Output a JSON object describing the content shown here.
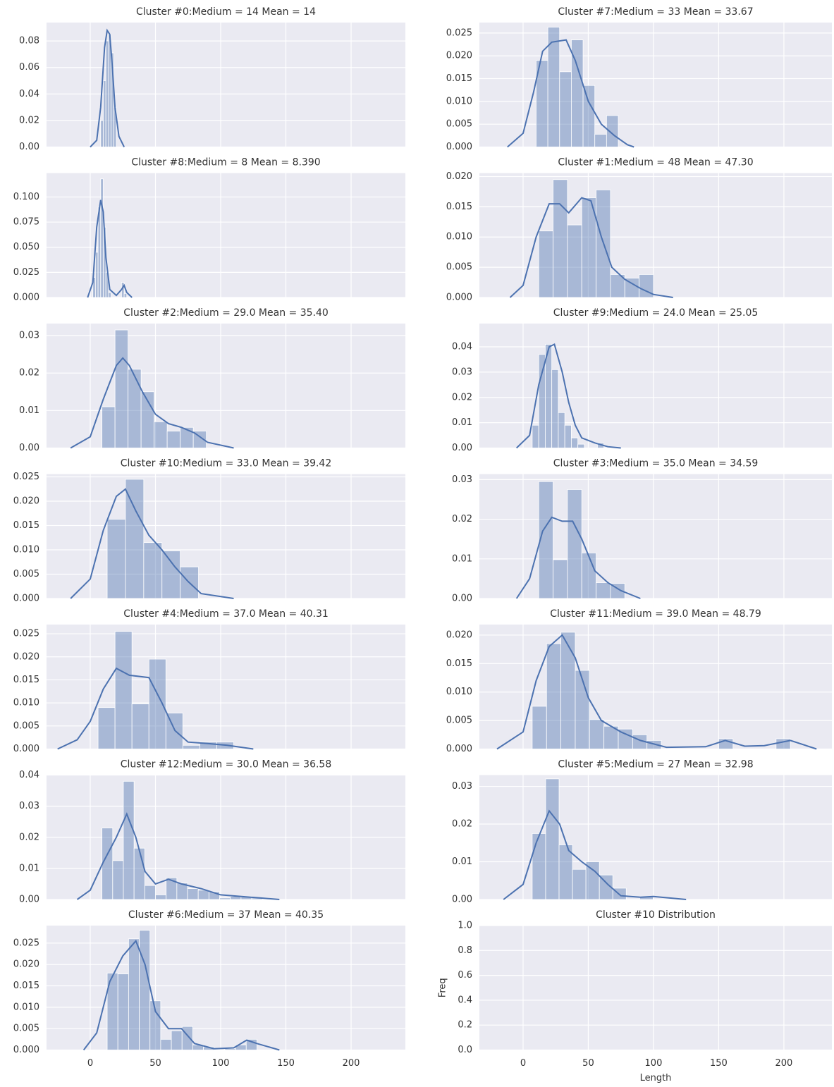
{
  "chart_data": [
    {
      "type": "histogram",
      "title": "Cluster #0:Medium = 14 Mean = 14",
      "color": "#4c72b0",
      "bins": [
        8,
        10,
        12,
        14,
        16,
        18,
        20
      ],
      "values": [
        0.02,
        0.05,
        0.08,
        0.085,
        0.071,
        0.03
      ],
      "kde": {
        "x": [
          0,
          5,
          8,
          11,
          13,
          15,
          17,
          19,
          22,
          26
        ],
        "values": [
          0,
          0.005,
          0.03,
          0.075,
          0.088,
          0.085,
          0.06,
          0.03,
          0.008,
          0
        ]
      },
      "xlim": [
        -33.5,
        241.6
      ],
      "xticks": [
        0,
        50,
        100,
        150,
        200
      ],
      "ylim": [
        0,
        0.0939
      ],
      "yticks": [
        {
          "value": 0,
          "label": "0.00"
        },
        0.02,
        0.04,
        0.06,
        0.08
      ],
      "grid": true
    },
    {
      "type": "histogram",
      "title": "Cluster #7:Medium = 33 Mean = 33.67",
      "color": "#4c72b0",
      "bins": [
        10,
        19,
        28,
        37,
        46,
        55,
        64,
        73
      ],
      "values": [
        0.019,
        0.0263,
        0.0165,
        0.0235,
        0.0135,
        0.0028,
        0.0069
      ],
      "kde": {
        "x": [
          -12,
          0,
          8,
          15,
          22,
          33,
          40,
          50,
          60,
          70,
          80,
          85
        ],
        "values": [
          0,
          0.003,
          0.012,
          0.021,
          0.023,
          0.0235,
          0.019,
          0.01,
          0.005,
          0.0025,
          0.0005,
          0
        ]
      },
      "xlim": [
        -33.5,
        236.8
      ],
      "xticks": [
        0,
        50,
        100,
        150,
        200
      ],
      "ylim": [
        0,
        0.0273
      ],
      "yticks": [
        {
          "value": 0,
          "label": "0.000"
        },
        0.005,
        {
          "value": 0.01,
          "label": "0.010"
        },
        0.015,
        {
          "value": 0.02,
          "label": "0.020"
        },
        0.025
      ],
      "grid": true
    },
    {
      "type": "histogram",
      "title": "Cluster #8:Medium = 8 Mean = 8.390",
      "color": "#4c72b0",
      "bins": [
        2,
        4,
        6,
        8,
        10,
        12,
        14,
        16,
        18,
        20,
        22,
        24,
        26,
        28
      ],
      "values": [
        0.02,
        0.045,
        0.09,
        0.118,
        0.07,
        0.025,
        0.005,
        0,
        0,
        0,
        0,
        0.015,
        0.004
      ],
      "kde": {
        "x": [
          -2,
          2,
          5,
          8,
          10,
          12,
          15,
          20,
          24,
          26,
          28,
          32
        ],
        "values": [
          0,
          0.015,
          0.07,
          0.097,
          0.085,
          0.04,
          0.008,
          0.002,
          0.008,
          0.012,
          0.005,
          0
        ]
      },
      "xlim": [
        -33.5,
        241.6
      ],
      "xticks": [
        0,
        50,
        100,
        150,
        200
      ],
      "ylim": [
        0,
        0.1238
      ],
      "yticks": [
        {
          "value": 0,
          "label": "0.000"
        },
        0.025,
        {
          "value": 0.05,
          "label": "0.050"
        },
        0.075,
        {
          "value": 0.1,
          "label": "0.100"
        }
      ],
      "grid": true
    },
    {
      "type": "histogram",
      "title": "Cluster #1:Medium = 48 Mean = 47.30",
      "color": "#4c72b0",
      "bins": [
        12,
        23,
        34,
        45,
        56,
        67,
        78,
        89,
        100
      ],
      "values": [
        0.011,
        0.0195,
        0.012,
        0.0165,
        0.0178,
        0.0038,
        0.0032,
        0.0038
      ],
      "kde": {
        "x": [
          -10,
          0,
          10,
          20,
          28,
          35,
          45,
          52,
          60,
          68,
          78,
          90,
          100,
          115
        ],
        "values": [
          0,
          0.002,
          0.01,
          0.0155,
          0.0155,
          0.014,
          0.0165,
          0.016,
          0.01,
          0.005,
          0.003,
          0.0015,
          0.0005,
          0
        ]
      },
      "xlim": [
        -33.5,
        236.8
      ],
      "xticks": [
        0,
        50,
        100,
        150,
        200
      ],
      "ylim": [
        0,
        0.02058
      ],
      "yticks": [
        {
          "value": 0,
          "label": "0.000"
        },
        0.005,
        {
          "value": 0.01,
          "label": "0.010"
        },
        0.015,
        {
          "value": 0.02,
          "label": "0.020"
        }
      ],
      "grid": true
    },
    {
      "type": "histogram",
      "title": "Cluster #2:Medium = 29.0 Mean = 35.40",
      "color": "#4c72b0",
      "bins": [
        9,
        19,
        29,
        39,
        49,
        59,
        69,
        79,
        89
      ],
      "values": [
        0.011,
        0.0315,
        0.021,
        0.015,
        0.007,
        0.0045,
        0.0055,
        0.0045
      ],
      "kde": {
        "x": [
          -15,
          0,
          10,
          20,
          25,
          30,
          40,
          50,
          60,
          70,
          80,
          90,
          110
        ],
        "values": [
          0,
          0.003,
          0.013,
          0.022,
          0.024,
          0.022,
          0.015,
          0.009,
          0.0065,
          0.0055,
          0.004,
          0.0015,
          0
        ]
      },
      "xlim": [
        -33.5,
        241.6
      ],
      "xticks": [
        0,
        50,
        100,
        150,
        200
      ],
      "ylim": [
        0,
        0.0332
      ],
      "yticks": [
        {
          "value": 0,
          "label": "0.00"
        },
        0.01,
        0.02,
        0.03
      ],
      "grid": true
    },
    {
      "type": "histogram",
      "title": "Cluster #9:Medium = 24.0 Mean = 25.05",
      "color": "#4c72b0",
      "bins": [
        7,
        12,
        17,
        22,
        27,
        32,
        37,
        42,
        47,
        52,
        57,
        62
      ],
      "values": [
        0.009,
        0.037,
        0.041,
        0.031,
        0.014,
        0.009,
        0.004,
        0.0015,
        0,
        0,
        0.002
      ],
      "kde": {
        "x": [
          -5,
          5,
          12,
          20,
          24,
          30,
          35,
          40,
          45,
          55,
          65,
          75
        ],
        "values": [
          0,
          0.005,
          0.025,
          0.04,
          0.041,
          0.03,
          0.018,
          0.009,
          0.004,
          0.002,
          0.0005,
          0
        ]
      },
      "xlim": [
        -33.5,
        236.8
      ],
      "xticks": [
        0,
        50,
        100,
        150,
        200
      ],
      "ylim": [
        0,
        0.0492
      ],
      "yticks": [
        {
          "value": 0,
          "label": "0.00"
        },
        0.01,
        0.02,
        0.03,
        0.04
      ],
      "grid": true
    },
    {
      "type": "histogram",
      "title": "Cluster #10:Medium = 33.0 Mean = 39.42",
      "color": "#4c72b0",
      "bins": [
        13,
        27,
        41,
        55,
        69,
        83
      ],
      "values": [
        0.0163,
        0.0245,
        0.0115,
        0.0098,
        0.0065
      ],
      "kde": {
        "x": [
          -15,
          0,
          10,
          20,
          27,
          35,
          45,
          55,
          65,
          75,
          85,
          110
        ],
        "values": [
          0,
          0.004,
          0.014,
          0.021,
          0.0225,
          0.018,
          0.013,
          0.01,
          0.0065,
          0.0035,
          0.001,
          0
        ]
      },
      "xlim": [
        -33.5,
        241.6
      ],
      "xticks": [
        0,
        50,
        100,
        150,
        200
      ],
      "ylim": [
        0,
        0.02558
      ],
      "yticks": [
        {
          "value": 0,
          "label": "0.000"
        },
        0.005,
        {
          "value": 0.01,
          "label": "0.010"
        },
        0.015,
        {
          "value": 0.02,
          "label": "0.020"
        },
        0.025
      ],
      "grid": true
    },
    {
      "type": "histogram",
      "title": "Cluster #3:Medium = 35.0 Mean = 34.59",
      "color": "#4c72b0",
      "bins": [
        12,
        23,
        34,
        45,
        56,
        67,
        78
      ],
      "values": [
        0.0295,
        0.0098,
        0.0275,
        0.0115,
        0.004,
        0.0038
      ],
      "kde": {
        "x": [
          -5,
          5,
          15,
          22,
          30,
          38,
          45,
          55,
          65,
          75,
          90
        ],
        "values": [
          0,
          0.005,
          0.017,
          0.0205,
          0.0195,
          0.0195,
          0.015,
          0.007,
          0.004,
          0.002,
          0
        ]
      },
      "xlim": [
        -33.5,
        236.8
      ],
      "xticks": [
        0,
        50,
        100,
        150,
        200
      ],
      "ylim": [
        0,
        0.0314
      ],
      "yticks": [
        {
          "value": 0,
          "label": "0.00"
        },
        0.01,
        0.02,
        0.03
      ],
      "grid": true
    },
    {
      "type": "histogram",
      "title": "Cluster #4:Medium = 37.0 Mean = 40.31",
      "color": "#4c72b0",
      "bins": [
        6,
        19,
        32,
        45,
        58,
        71,
        84,
        97,
        110
      ],
      "values": [
        0.009,
        0.0255,
        0.0098,
        0.0195,
        0.0078,
        0.0008,
        0.0015,
        0.0015
      ],
      "kde": {
        "x": [
          -25,
          -10,
          0,
          10,
          20,
          30,
          45,
          55,
          65,
          75,
          90,
          105,
          125
        ],
        "values": [
          0,
          0.002,
          0.006,
          0.013,
          0.0175,
          0.016,
          0.0155,
          0.01,
          0.004,
          0.0015,
          0.0012,
          0.0008,
          0
        ]
      },
      "xlim": [
        -33.5,
        241.6
      ],
      "xticks": [
        0,
        50,
        100,
        150,
        200
      ],
      "ylim": [
        0,
        0.027
      ],
      "yticks": [
        {
          "value": 0,
          "label": "0.000"
        },
        0.005,
        {
          "value": 0.01,
          "label": "0.010"
        },
        0.015,
        {
          "value": 0.02,
          "label": "0.020"
        },
        0.025
      ],
      "grid": true
    },
    {
      "type": "histogram",
      "title": "Cluster #11:Medium = 39.0 Mean = 48.79",
      "color": "#4c72b0",
      "bins": [
        7,
        18,
        29,
        40,
        51,
        62,
        73,
        84,
        95,
        106,
        117,
        128,
        139,
        150,
        161,
        172,
        183,
        194,
        205
      ],
      "values": [
        0.0075,
        0.0185,
        0.0205,
        0.0138,
        0.0052,
        0.004,
        0.0035,
        0.0025,
        0.0015,
        0,
        0,
        0,
        0,
        0.0018,
        0,
        0,
        0,
        0.0018
      ],
      "kde": {
        "x": [
          -20,
          0,
          10,
          20,
          30,
          40,
          50,
          60,
          75,
          90,
          110,
          140,
          155,
          170,
          185,
          205,
          225
        ],
        "values": [
          0,
          0.003,
          0.012,
          0.018,
          0.02,
          0.016,
          0.009,
          0.005,
          0.003,
          0.0015,
          0.0003,
          0.0004,
          0.0015,
          0.0005,
          0.0006,
          0.0015,
          0
        ]
      },
      "xlim": [
        -33.5,
        236.8
      ],
      "xticks": [
        0,
        50,
        100,
        150,
        200
      ],
      "ylim": [
        0,
        0.02185
      ],
      "yticks": [
        {
          "value": 0,
          "label": "0.000"
        },
        0.005,
        {
          "value": 0.01,
          "label": "0.010"
        },
        0.015,
        {
          "value": 0.02,
          "label": "0.020"
        }
      ],
      "grid": true
    },
    {
      "type": "histogram",
      "title": "Cluster #12:Medium = 30.0 Mean = 36.58",
      "color": "#4c72b0",
      "bins": [
        9,
        17.2,
        25.4,
        33.6,
        41.8,
        50,
        58.2,
        66.4,
        74.6,
        82.8,
        91,
        99.2,
        107.4,
        115.6,
        123.8,
        132
      ],
      "values": [
        0.023,
        0.0125,
        0.038,
        0.0165,
        0.0045,
        0.0015,
        0.007,
        0.0053,
        0.0035,
        0.003,
        0.0025,
        0.0005,
        0.001,
        0.001,
        0.0005
      ],
      "kde": {
        "x": [
          -10,
          0,
          10,
          20,
          28,
          35,
          42,
          50,
          60,
          70,
          85,
          100,
          115,
          130,
          145
        ],
        "values": [
          0,
          0.003,
          0.012,
          0.02,
          0.0275,
          0.02,
          0.009,
          0.005,
          0.0065,
          0.005,
          0.0035,
          0.0015,
          0.001,
          0.0005,
          0
        ]
      },
      "xlim": [
        -33.5,
        241.6
      ],
      "xticks": [
        0,
        50,
        100,
        150,
        200
      ],
      "ylim": [
        0,
        0.04
      ],
      "yticks": [
        {
          "value": 0,
          "label": "0.00"
        },
        0.01,
        0.02,
        0.03,
        0.04
      ],
      "grid": true
    },
    {
      "type": "histogram",
      "title": "Cluster #5:Medium = 27 Mean = 32.98",
      "color": "#4c72b0",
      "bins": [
        7,
        17.3,
        27.6,
        37.9,
        48.2,
        58.5,
        68.8,
        79.1,
        89.4,
        99.7
      ],
      "values": [
        0.0175,
        0.032,
        0.0145,
        0.008,
        0.01,
        0.0065,
        0.003,
        0,
        0.0008
      ],
      "kde": {
        "x": [
          -15,
          0,
          10,
          20,
          28,
          35,
          45,
          55,
          65,
          75,
          90,
          100,
          125
        ],
        "values": [
          0,
          0.004,
          0.015,
          0.0235,
          0.02,
          0.013,
          0.01,
          0.0075,
          0.004,
          0.001,
          0.0006,
          0.0008,
          0
        ]
      },
      "xlim": [
        -33.5,
        236.8
      ],
      "xticks": [
        0,
        50,
        100,
        150,
        200
      ],
      "ylim": [
        0,
        0.033
      ],
      "yticks": [
        {
          "value": 0,
          "label": "0.00"
        },
        0.01,
        0.02,
        0.03
      ],
      "grid": true
    },
    {
      "type": "histogram",
      "title": "Cluster #6:Medium = 37 Mean = 40.35",
      "color": "#4c72b0",
      "bins": [
        13,
        21.2,
        29.4,
        37.6,
        45.8,
        54,
        62.2,
        70.4,
        78.6,
        86.8,
        95,
        103.2,
        111.4,
        119.6,
        127.8
      ],
      "values": [
        0.018,
        0.0178,
        0.026,
        0.028,
        0.0115,
        0.0025,
        0.0045,
        0.0055,
        0.0012,
        0.0007,
        0,
        0.0003,
        0.0012,
        0.0025
      ],
      "kde": {
        "x": [
          -5,
          5,
          15,
          25,
          35,
          42,
          50,
          60,
          70,
          80,
          95,
          110,
          120,
          128,
          145
        ],
        "values": [
          0,
          0.004,
          0.016,
          0.022,
          0.0255,
          0.02,
          0.009,
          0.005,
          0.005,
          0.0015,
          0.0003,
          0.0005,
          0.0023,
          0.0015,
          0
        ]
      },
      "xlim": [
        -33.5,
        241.6
      ],
      "xticks": [
        0,
        50,
        100,
        150,
        200
      ],
      "ylim": [
        0,
        0.0291
      ],
      "yticks": [
        {
          "value": 0,
          "label": "0.000"
        },
        0.005,
        {
          "value": 0.01,
          "label": "0.010"
        },
        0.015,
        {
          "value": 0.02,
          "label": "0.020"
        },
        0.025
      ],
      "grid": true
    },
    {
      "type": "histogram",
      "title": "Cluster #10 Distribution",
      "xlabel": "Length",
      "ylabel": "Freq",
      "color": "#4c72b0",
      "xlim": [
        -33.5,
        236.8
      ],
      "xticks": [
        0,
        50,
        100,
        150,
        200
      ],
      "ylim": [
        0,
        1
      ],
      "yticks": [
        {
          "value": 0,
          "label": "0.0"
        },
        0.2,
        0.4,
        0.6,
        0.8,
        {
          "value": 1,
          "label": "1.0"
        }
      ],
      "grid": true
    }
  ]
}
